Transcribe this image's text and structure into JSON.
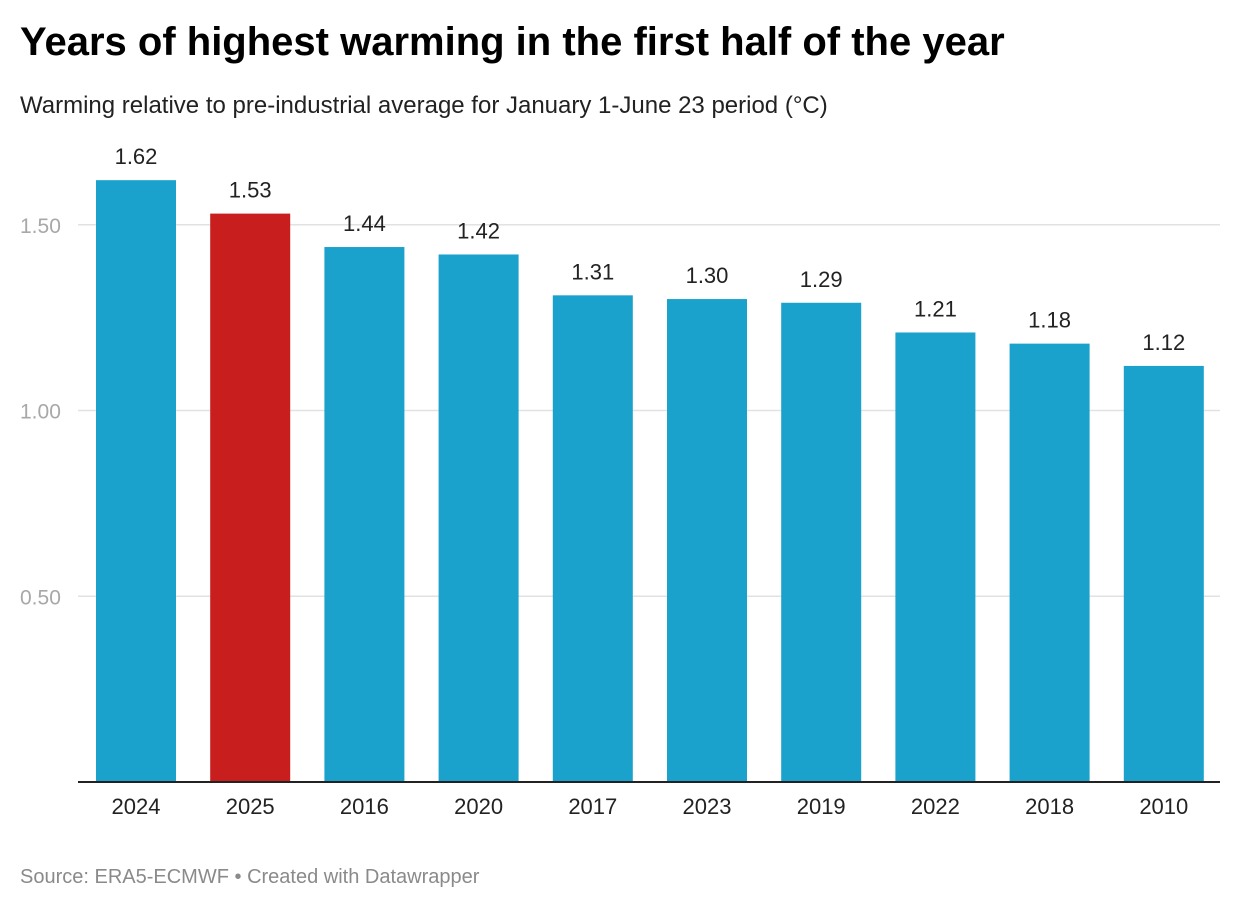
{
  "title": "Years of highest warming in the first half of the year",
  "subtitle": "Warming relative to pre-industrial average for January 1-June 23 period (°C)",
  "footer": {
    "source": "Source: ERA5-ECMWF",
    "separator": "•",
    "credit": "Created with Datawrapper"
  },
  "colors": {
    "bar": "#1aa1cc",
    "highlight": "#c81e1e",
    "grid": "#e2e2e2",
    "axis": "#222222",
    "tick_label": "#a8a8a8",
    "value_label": "#222222"
  },
  "chart_data": {
    "type": "bar",
    "title": "Years of highest warming in the first half of the year",
    "subtitle": "Warming relative to pre-industrial average for January 1-June 23 period (°C)",
    "categories": [
      "2024",
      "2025",
      "2016",
      "2020",
      "2017",
      "2023",
      "2019",
      "2022",
      "2018",
      "2010"
    ],
    "values": [
      1.62,
      1.53,
      1.44,
      1.42,
      1.31,
      1.3,
      1.29,
      1.21,
      1.18,
      1.12
    ],
    "value_labels": [
      "1.62",
      "1.53",
      "1.44",
      "1.42",
      "1.31",
      "1.30",
      "1.29",
      "1.21",
      "1.18",
      "1.12"
    ],
    "highlighted": [
      "2025"
    ],
    "yticks": [
      0.5,
      1.0,
      1.5
    ],
    "ytick_labels": [
      "0.50",
      "1.00",
      "1.50"
    ],
    "ylim": [
      0,
      1.62
    ],
    "xlabel": "",
    "ylabel": "",
    "grid": true
  }
}
